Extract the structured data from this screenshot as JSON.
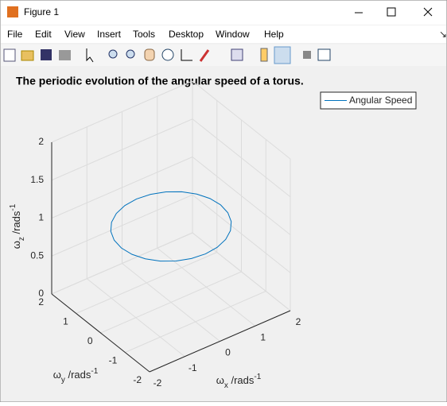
{
  "window": {
    "title": "Figure 1"
  },
  "menu": [
    "File",
    "Edit",
    "View",
    "Insert",
    "Tools",
    "Desktop",
    "Window",
    "Help"
  ],
  "chart_data": {
    "type": "line3d",
    "title": "The periodic evolution of the angular speed of a torus.",
    "xlabel": [
      "ω",
      "x",
      " /rads",
      "-1"
    ],
    "ylabel": [
      "ω",
      "y",
      " /rads",
      "-1"
    ],
    "zlabel": [
      "ω",
      "z",
      " /rads",
      "-1"
    ],
    "xlim": [
      -2,
      2
    ],
    "ylim": [
      -2,
      2
    ],
    "zlim": [
      0,
      2
    ],
    "xticks": [
      -2,
      -1,
      0,
      1,
      2
    ],
    "yticks": [
      -2,
      -1,
      0,
      1,
      2
    ],
    "zticks": [
      0,
      0.5,
      1,
      1.5,
      2
    ],
    "grid": true,
    "legend": "northeast",
    "series": [
      {
        "name": "Angular Speed",
        "color": "#0072bd",
        "x": [
          1.41,
          1.362,
          1.221,
          0.997,
          0.705,
          0.365,
          0,
          -0.365,
          -0.705,
          -0.997,
          -1.221,
          -1.362,
          -1.41,
          -1.362,
          -1.221,
          -0.997,
          -0.705,
          -0.365,
          0,
          0.365,
          0.705,
          0.997,
          1.221,
          1.362,
          1.41
        ],
        "y": [
          0,
          0.365,
          0.705,
          0.997,
          1.221,
          1.362,
          1.41,
          1.362,
          1.221,
          0.997,
          0.705,
          0.365,
          0,
          -0.365,
          -0.705,
          -0.997,
          -1.221,
          -1.362,
          -1.41,
          -1.362,
          -1.221,
          -0.997,
          -0.705,
          -0.365,
          0
        ],
        "z": [
          1,
          1,
          1,
          1,
          1,
          1,
          1,
          1,
          1,
          1,
          1,
          1,
          1,
          1,
          1,
          1,
          1,
          1,
          1,
          1,
          1,
          1,
          1,
          1,
          1
        ]
      }
    ]
  }
}
